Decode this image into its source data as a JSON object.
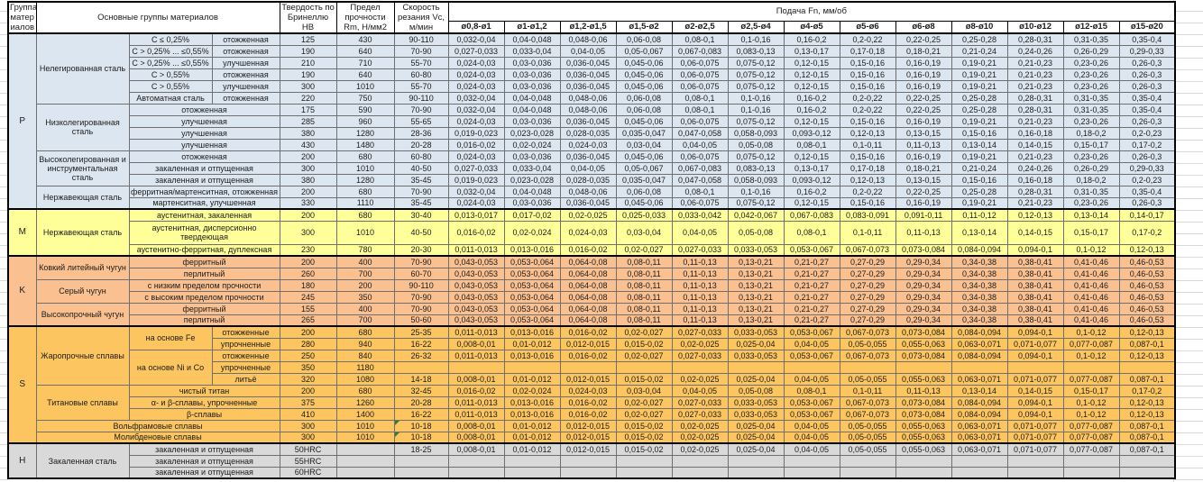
{
  "header": {
    "group": "Группа матер иалов",
    "materials": "Основные группы материалов",
    "hardness": "Твердость по Бринеллю HB",
    "strength": "Предел прочности Rm, Н/мм2",
    "speed": "Скорость резания Vc, м/мин",
    "feed": "Подача Fn, мм/об",
    "diameters": [
      "ø0,8-ø1",
      "ø1-ø1,2",
      "ø1,2-ø1,5",
      "ø1,5-ø2",
      "ø2-ø2,5",
      "ø2,5-ø4",
      "ø4-ø5",
      "ø5-ø6",
      "ø6-ø8",
      "ø8-ø10",
      "ø10-ø12",
      "ø12-ø15",
      "ø15-ø20"
    ]
  },
  "feed_patterns": {
    "A": [
      "0,032-0,04",
      "0,04-0,048",
      "0,048-0,06",
      "0,06-0,08",
      "0,08-0,1",
      "0,1-0,16",
      "0,16-0,2",
      "0,2-0,22",
      "0,22-0,25",
      "0,25-0,28",
      "0,28-0,31",
      "0,31-0,35",
      "0,35-0,4"
    ],
    "B": [
      "0,027-0,033",
      "0,033-0,04",
      "0,04-0,05",
      "0,05-0,067",
      "0,067-0,083",
      "0,083-0,13",
      "0,13-0,17",
      "0,17-0,18",
      "0,18-0,21",
      "0,21-0,24",
      "0,24-0,26",
      "0,26-0,29",
      "0,29-0,33"
    ],
    "C": [
      "0,024-0,03",
      "0,03-0,036",
      "0,036-0,045",
      "0,045-0,06",
      "0,06-0,075",
      "0,075-0,12",
      "0,12-0,15",
      "0,15-0,16",
      "0,16-0,19",
      "0,19-0,21",
      "0,21-0,23",
      "0,23-0,26",
      "0,26-0,3"
    ],
    "D": [
      "0,019-0,023",
      "0,023-0,028",
      "0,028-0,035",
      "0,035-0,047",
      "0,047-0,058",
      "0,058-0,093",
      "0,093-0,12",
      "0,12-0,13",
      "0,13-0,15",
      "0,15-0,16",
      "0,16-0,18",
      "0,18-0,2",
      "0,2-0,23"
    ],
    "E": [
      "0,016-0,02",
      "0,02-0,024",
      "0,024-0,03",
      "0,03-0,04",
      "0,04-0,05",
      "0,05-0,08",
      "0,08-0,1",
      "0,1-0,11",
      "0,11-0,13",
      "0,13-0,14",
      "0,14-0,15",
      "0,15-0,17",
      "0,17-0,2"
    ],
    "F": [
      "0,013-0,017",
      "0,017-0,02",
      "0,02-0,025",
      "0,025-0,033",
      "0,033-0,042",
      "0,042-0,067",
      "0,067-0,083",
      "0,083-0,091",
      "0,091-0,11",
      "0,11-0,12",
      "0,12-0,13",
      "0,13-0,14",
      "0,14-0,17"
    ],
    "G": [
      "0,011-0,013",
      "0,013-0,016",
      "0,016-0,02",
      "0,02-0,027",
      "0,027-0,033",
      "0,033-0,053",
      "0,053-0,067",
      "0,067-0,073",
      "0,073-0,084",
      "0,084-0,094",
      "0,094-0,1",
      "0,1-0,12",
      "0,12-0,13"
    ],
    "K": [
      "0,043-0,053",
      "0,053-0,064",
      "0,064-0,08",
      "0,08-0,11",
      "0,11-0,13",
      "0,13-0,21",
      "0,21-0,27",
      "0,27-0,29",
      "0,29-0,34",
      "0,34-0,38",
      "0,38-0,41",
      "0,41-0,46",
      "0,46-0,53"
    ],
    "H": [
      "0,008-0,01",
      "0,01-0,012",
      "0,012-0,015",
      "0,015-0,02",
      "0,02-0,025",
      "0,025-0,04",
      "0,04-0,05",
      "0,05-0,055",
      "0,055-0,063",
      "0,063-0,071",
      "0,071-0,077",
      "0,077-0,087",
      "0,087-0,1"
    ]
  },
  "groups": [
    {
      "letter": "P",
      "color": "#dce6f1",
      "rows": [
        {
          "mat": [
            {
              "t": "Нелегированная сталь",
              "rs": 6
            },
            {
              "t": "C ≤ 0,25%"
            },
            {
              "t": "отожженная"
            }
          ],
          "hb": "125",
          "rm": "430",
          "vc": "90-110",
          "fp": "A"
        },
        {
          "mat": [
            {
              "t": "C > 0,25% ... ≤0,55%"
            },
            {
              "t": "отожженная"
            }
          ],
          "hb": "190",
          "rm": "640",
          "vc": "70-90",
          "fp": "B"
        },
        {
          "mat": [
            {
              "t": "C > 0,25% ... ≤0,55%"
            },
            {
              "t": "улучшенная"
            }
          ],
          "hb": "210",
          "rm": "710",
          "vc": "55-70",
          "fp": "C"
        },
        {
          "mat": [
            {
              "t": "C > 0,55%"
            },
            {
              "t": "отожженная"
            }
          ],
          "hb": "190",
          "rm": "640",
          "vc": "60-80",
          "fp": "C"
        },
        {
          "mat": [
            {
              "t": "C > 0,55%"
            },
            {
              "t": "улучшенная"
            }
          ],
          "hb": "300",
          "rm": "1010",
          "vc": "55-70",
          "fp": "C"
        },
        {
          "mat": [
            {
              "t": "Автоматная сталь"
            },
            {
              "t": "отожженная"
            }
          ],
          "hb": "220",
          "rm": "750",
          "vc": "90-110",
          "fp": "A"
        },
        {
          "mat": [
            {
              "t": "Низколегированная сталь",
              "rs": 4
            },
            {
              "t": "отожженная",
              "cs": 2
            }
          ],
          "hb": "175",
          "rm": "590",
          "vc": "70-90",
          "fp": "A"
        },
        {
          "mat": [
            {
              "t": "улучшенная",
              "cs": 2
            }
          ],
          "hb": "285",
          "rm": "960",
          "vc": "55-65",
          "fp": "C"
        },
        {
          "mat": [
            {
              "t": "улучшенная",
              "cs": 2
            }
          ],
          "hb": "380",
          "rm": "1280",
          "vc": "28-36",
          "fp": "D"
        },
        {
          "mat": [
            {
              "t": "улучшенная",
              "cs": 2
            }
          ],
          "hb": "430",
          "rm": "1480",
          "vc": "20-28",
          "fp": "E"
        },
        {
          "mat": [
            {
              "t": "Высоколегированная и инструментальная сталь",
              "rs": 3
            },
            {
              "t": "отожженная",
              "cs": 2
            }
          ],
          "hb": "200",
          "rm": "680",
          "vc": "60-80",
          "fp": "C"
        },
        {
          "mat": [
            {
              "t": "закаленная и отпущенная",
              "cs": 2
            }
          ],
          "hb": "300",
          "rm": "1010",
          "vc": "40-50",
          "fp": "B"
        },
        {
          "mat": [
            {
              "t": "закаленная и отпущенная",
              "cs": 2
            }
          ],
          "hb": "380",
          "rm": "1280",
          "vc": "35-45",
          "fp": "D"
        },
        {
          "mat": [
            {
              "t": "Нержавеющая сталь",
              "rs": 2
            },
            {
              "t": "ферритная/мартенситная, отожженная",
              "cs": 2
            }
          ],
          "hb": "200",
          "rm": "680",
          "vc": "70-90",
          "fp": "A"
        },
        {
          "mat": [
            {
              "t": "мартенситная, улучшенная",
              "cs": 2
            }
          ],
          "hb": "330",
          "rm": "1110",
          "vc": "35-45",
          "fp": "C"
        }
      ]
    },
    {
      "letter": "M",
      "color": "#ffff99",
      "rows": [
        {
          "mat": [
            {
              "t": "Нержавеющая сталь",
              "rs": 3
            },
            {
              "t": "аустенитная, закаленная",
              "cs": 2
            }
          ],
          "hb": "200",
          "rm": "680",
          "vc": "30-40",
          "fp": "F"
        },
        {
          "mat": [
            {
              "t": "аустенитная, дисперсионно твердеющая",
              "cs": 2
            }
          ],
          "hb": "300",
          "rm": "1010",
          "vc": "40-50",
          "fp": "E",
          "tall": true
        },
        {
          "mat": [
            {
              "t": "аустенитно-ферритная, дуплексная",
              "cs": 2
            }
          ],
          "hb": "230",
          "rm": "780",
          "vc": "20-30",
          "fp": "G"
        }
      ]
    },
    {
      "letter": "K",
      "color": "#fac090",
      "rows": [
        {
          "mat": [
            {
              "t": "Ковкий литейный чугун",
              "rs": 2
            },
            {
              "t": "ферритный",
              "cs": 2
            }
          ],
          "hb": "200",
          "rm": "400",
          "vc": "70-90",
          "fp": "K"
        },
        {
          "mat": [
            {
              "t": "перлитный",
              "cs": 2
            }
          ],
          "hb": "260",
          "rm": "700",
          "vc": "60-70",
          "fp": "K"
        },
        {
          "mat": [
            {
              "t": "Серый чугун",
              "rs": 2
            },
            {
              "t": "с низким пределом прочности",
              "cs": 2
            }
          ],
          "hb": "180",
          "rm": "200",
          "vc": "90-110",
          "fp": "K"
        },
        {
          "mat": [
            {
              "t": "с высоким пределом прочности",
              "cs": 2
            }
          ],
          "hb": "245",
          "rm": "350",
          "vc": "70-90",
          "fp": "K"
        },
        {
          "mat": [
            {
              "t": "Высокопрочный чугун",
              "rs": 2
            },
            {
              "t": "ферритный",
              "cs": 2
            }
          ],
          "hb": "155",
          "rm": "400",
          "vc": "70-90",
          "fp": "K"
        },
        {
          "mat": [
            {
              "t": "перлитный",
              "cs": 2
            }
          ],
          "hb": "265",
          "rm": "700",
          "vc": "50-60",
          "fp": "K"
        }
      ]
    },
    {
      "letter": "S",
      "color": "#fcc55f",
      "rows": [
        {
          "mat": [
            {
              "t": "Жаропрочные сплавы",
              "rs": 5
            },
            {
              "t": "на основе Fe",
              "rs": 2
            },
            {
              "t": "отожженные"
            }
          ],
          "hb": "200",
          "rm": "680",
          "vc": "25-35",
          "fp": "G"
        },
        {
          "mat": [
            {
              "t": "упрочненные"
            }
          ],
          "hb": "280",
          "rm": "940",
          "vc": "16-22",
          "fp": "H"
        },
        {
          "mat": [
            {
              "t": "на основе Ni и Co",
              "rs": 3
            },
            {
              "t": "отожженные"
            }
          ],
          "hb": "250",
          "rm": "840",
          "vc": "26-32",
          "fp": "G"
        },
        {
          "mat": [
            {
              "t": "упрочненные"
            }
          ],
          "hb": "350",
          "rm": "1180",
          "vc": "",
          "fp": ""
        },
        {
          "mat": [
            {
              "t": "литьё"
            }
          ],
          "hb": "320",
          "rm": "1080",
          "vc": "14-18",
          "fp": "H"
        },
        {
          "mat": [
            {
              "t": "Титановые сплавы",
              "rs": 3
            },
            {
              "t": "чистый титан",
              "cs": 2
            }
          ],
          "hb": "200",
          "rm": "680",
          "vc": "32-45",
          "fp": "E"
        },
        {
          "mat": [
            {
              "t": "α- и β-сплавы, упрочненные",
              "cs": 2
            }
          ],
          "hb": "375",
          "rm": "1260",
          "vc": "20-28",
          "fp": "G"
        },
        {
          "mat": [
            {
              "t": "β-сплавы",
              "cs": 2
            }
          ],
          "hb": "410",
          "rm": "1400",
          "vc": "16-22",
          "fp": "G"
        },
        {
          "mat": [
            {
              "t": "Вольфрамовые сплавы",
              "cs": 3
            }
          ],
          "hb": "300",
          "rm": "1010",
          "vc": "10-18",
          "fp": "H",
          "flag": true
        },
        {
          "mat": [
            {
              "t": "Молибденовые сплавы",
              "cs": 3
            }
          ],
          "hb": "300",
          "rm": "1010",
          "vc": "10-18",
          "fp": "H",
          "flag": true
        }
      ]
    },
    {
      "letter": "H",
      "color": "#d9d9d9",
      "rows": [
        {
          "mat": [
            {
              "t": "Закаленная сталь",
              "rs": 3
            },
            {
              "t": "закаленная и отпущенная",
              "cs": 2
            }
          ],
          "hb": "50HRC",
          "rm": "",
          "vc": "18-25",
          "fp": "H"
        },
        {
          "mat": [
            {
              "t": "закаленная и отпущенная",
              "cs": 2
            }
          ],
          "hb": "55HRC",
          "rm": "",
          "vc": "",
          "fp": ""
        },
        {
          "mat": [
            {
              "t": "закаленная и отпущенная",
              "cs": 2
            }
          ],
          "hb": "60HRC",
          "rm": "",
          "vc": "",
          "fp": ""
        }
      ]
    }
  ]
}
